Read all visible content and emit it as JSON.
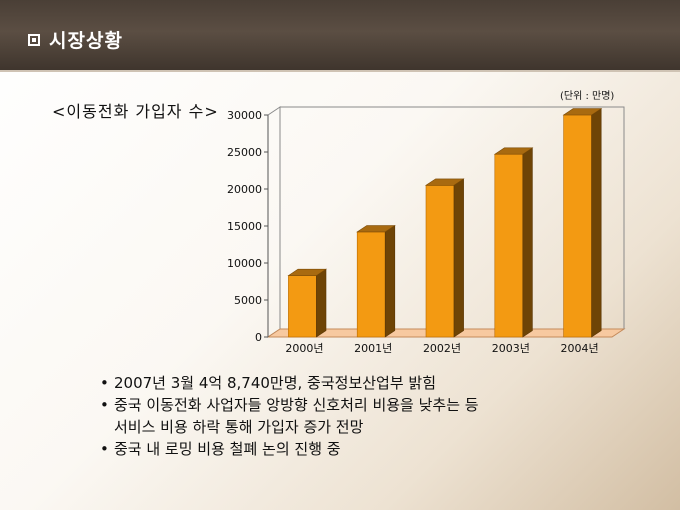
{
  "header": {
    "icon": "square-bullet-icon",
    "title": "시장상황"
  },
  "chart_subtitle": "<이동전화 가입자 수>",
  "unit_label": "(단위 : 만명)",
  "chart_data": {
    "type": "bar",
    "categories": [
      "2000년",
      "2001년",
      "2002년",
      "2003년",
      "2004년"
    ],
    "values": [
      8300,
      14200,
      20500,
      24700,
      30000
    ],
    "ylim": [
      0,
      30000
    ],
    "yticks": [
      0,
      5000,
      10000,
      15000,
      20000,
      25000,
      30000
    ],
    "bar_color": "#f39a12",
    "grid": false
  },
  "bullets": [
    {
      "lines": [
        "2007년 3월 4억 8,740만명, 중국정보산업부 밝힘"
      ]
    },
    {
      "lines": [
        "중국 이동전화 사업자들 앙방향 신호처리 비용을 낮추는 등",
        "서비스 비용 하락 통해 가입자 증가 전망"
      ]
    },
    {
      "lines": [
        "중국 내 로밍 비용 철폐 논의 진행 중"
      ]
    }
  ]
}
